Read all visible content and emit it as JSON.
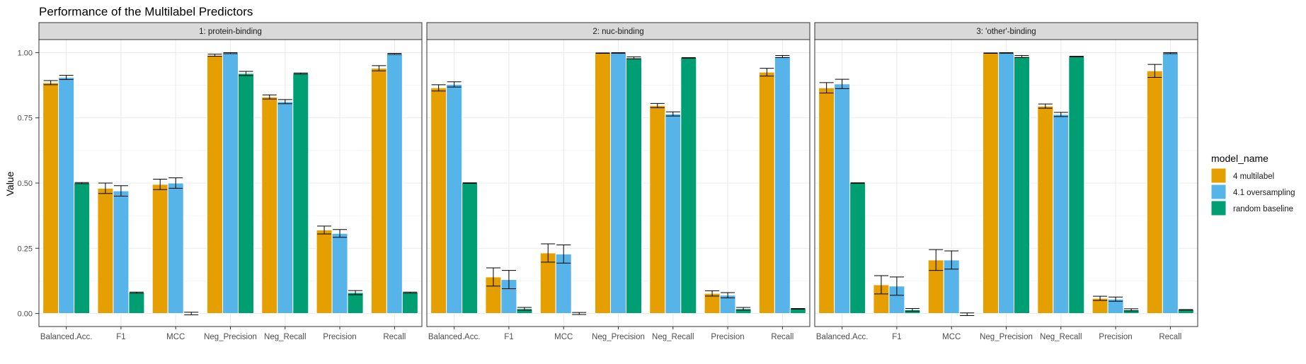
{
  "title": "Performance of the Multilabel Predictors",
  "ylabel": "Value",
  "legend": {
    "title": "model_name",
    "items": [
      {
        "label": "4 multilabel",
        "color": "#E69F00"
      },
      {
        "label": "4.1 oversampling",
        "color": "#56B4E9"
      },
      {
        "label": "random baseline",
        "color": "#009E73"
      }
    ]
  },
  "chart_data": {
    "type": "bar",
    "title": "Performance of the Multilabel Predictors",
    "xlabel": "",
    "ylabel": "Value",
    "ylim": [
      0,
      1.0
    ],
    "yticks": [
      "0.00",
      "0.25",
      "0.50",
      "0.75",
      "1.00"
    ],
    "grid": true,
    "legend_position": "right",
    "categories": [
      "Balanced.Acc.",
      "F1",
      "MCC",
      "Neg_Precision",
      "Neg_Recall",
      "Precision",
      "Recall"
    ],
    "panels": [
      {
        "title": "1: protein-binding",
        "series": [
          {
            "name": "4 multilabel",
            "values": [
              0.885,
              0.48,
              0.495,
              0.99,
              0.83,
              0.32,
              0.94
            ],
            "errors": [
              0.008,
              0.02,
              0.02,
              0.004,
              0.008,
              0.015,
              0.01
            ]
          },
          {
            "name": "4.1 oversampling",
            "values": [
              0.905,
              0.47,
              0.5,
              0.998,
              0.812,
              0.307,
              0.995
            ],
            "errors": [
              0.008,
              0.02,
              0.02,
              0.002,
              0.008,
              0.015,
              0.002
            ]
          },
          {
            "name": "random baseline",
            "values": [
              0.5,
              0.08,
              0.0,
              0.92,
              0.92,
              0.08,
              0.08
            ],
            "errors": [
              0.002,
              0.002,
              0.005,
              0.008,
              0.002,
              0.008,
              0.002
            ]
          }
        ]
      },
      {
        "title": "2: nuc-binding",
        "series": [
          {
            "name": "4 multilabel",
            "values": [
              0.865,
              0.14,
              0.232,
              0.998,
              0.797,
              0.077,
              0.925
            ],
            "errors": [
              0.012,
              0.035,
              0.035,
              0.001,
              0.008,
              0.01,
              0.015
            ]
          },
          {
            "name": "4.1 oversampling",
            "values": [
              0.878,
              0.13,
              0.228,
              0.999,
              0.765,
              0.07,
              0.985
            ],
            "errors": [
              0.01,
              0.035,
              0.035,
              0.001,
              0.008,
              0.01,
              0.004
            ]
          },
          {
            "name": "random baseline",
            "values": [
              0.5,
              0.018,
              0.0,
              0.98,
              0.98,
              0.018,
              0.018
            ],
            "errors": [
              0.001,
              0.005,
              0.004,
              0.004,
              0.001,
              0.005,
              0.001
            ]
          }
        ]
      },
      {
        "title": "3: 'other'-binding",
        "series": [
          {
            "name": "4 multilabel",
            "values": [
              0.865,
              0.11,
              0.205,
              0.998,
              0.795,
              0.058,
              0.93
            ],
            "errors": [
              0.02,
              0.035,
              0.04,
              0.001,
              0.008,
              0.008,
              0.025
            ]
          },
          {
            "name": "4.1 oversampling",
            "values": [
              0.88,
              0.105,
              0.205,
              0.999,
              0.763,
              0.055,
              0.998
            ],
            "errors": [
              0.018,
              0.035,
              0.035,
              0.001,
              0.008,
              0.008,
              0.002
            ]
          },
          {
            "name": "random baseline",
            "values": [
              0.5,
              0.014,
              -0.003,
              0.985,
              0.985,
              0.014,
              0.014
            ],
            "errors": [
              0.001,
              0.005,
              0.005,
              0.004,
              0.001,
              0.004,
              0.001
            ]
          }
        ]
      }
    ]
  }
}
